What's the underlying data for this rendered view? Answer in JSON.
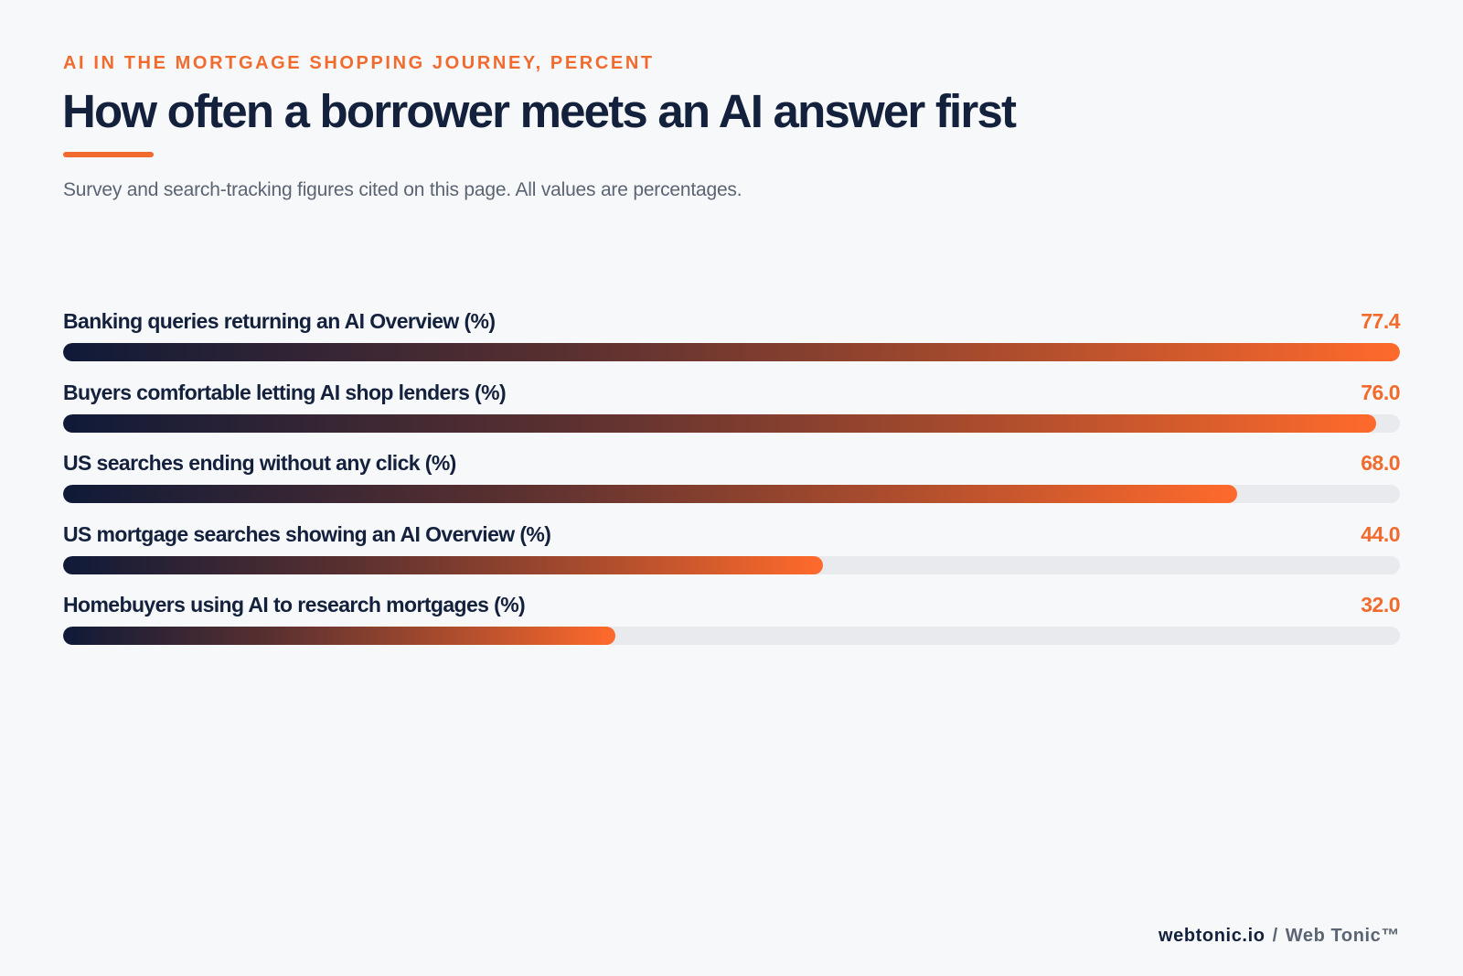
{
  "header": {
    "eyebrow": "AI IN THE MORTGAGE SHOPPING JOURNEY, PERCENT",
    "title": "How often a borrower meets an AI answer first",
    "subtitle": "Survey and search-tracking figures cited on this page. All values are percentages."
  },
  "footer": {
    "site": "webtonic.io",
    "separator": "/",
    "brand": "Web Tonic™"
  },
  "colors": {
    "accent": "#f26b2e",
    "navy": "#14213d",
    "track": "#e8eaee",
    "gradient_start": "#0f1a38",
    "gradient_end": "#ff6a2c"
  },
  "chart_data": {
    "type": "bar",
    "orientation": "horizontal",
    "title": "How often a borrower meets an AI answer first",
    "categories": [
      "Banking queries returning an AI Overview (%)",
      "Buyers comfortable letting AI shop lenders (%)",
      "US searches ending without any click (%)",
      "US mortgage searches showing an AI Overview (%)",
      "Homebuyers using AI to research mortgages (%)"
    ],
    "values": [
      77.4,
      76.0,
      68.0,
      44.0,
      32.0
    ],
    "value_labels": [
      "77.4",
      "76.0",
      "68.0",
      "44.0",
      "32.0"
    ],
    "xlim": [
      0,
      77.4
    ],
    "grid": false,
    "legend": "none"
  }
}
